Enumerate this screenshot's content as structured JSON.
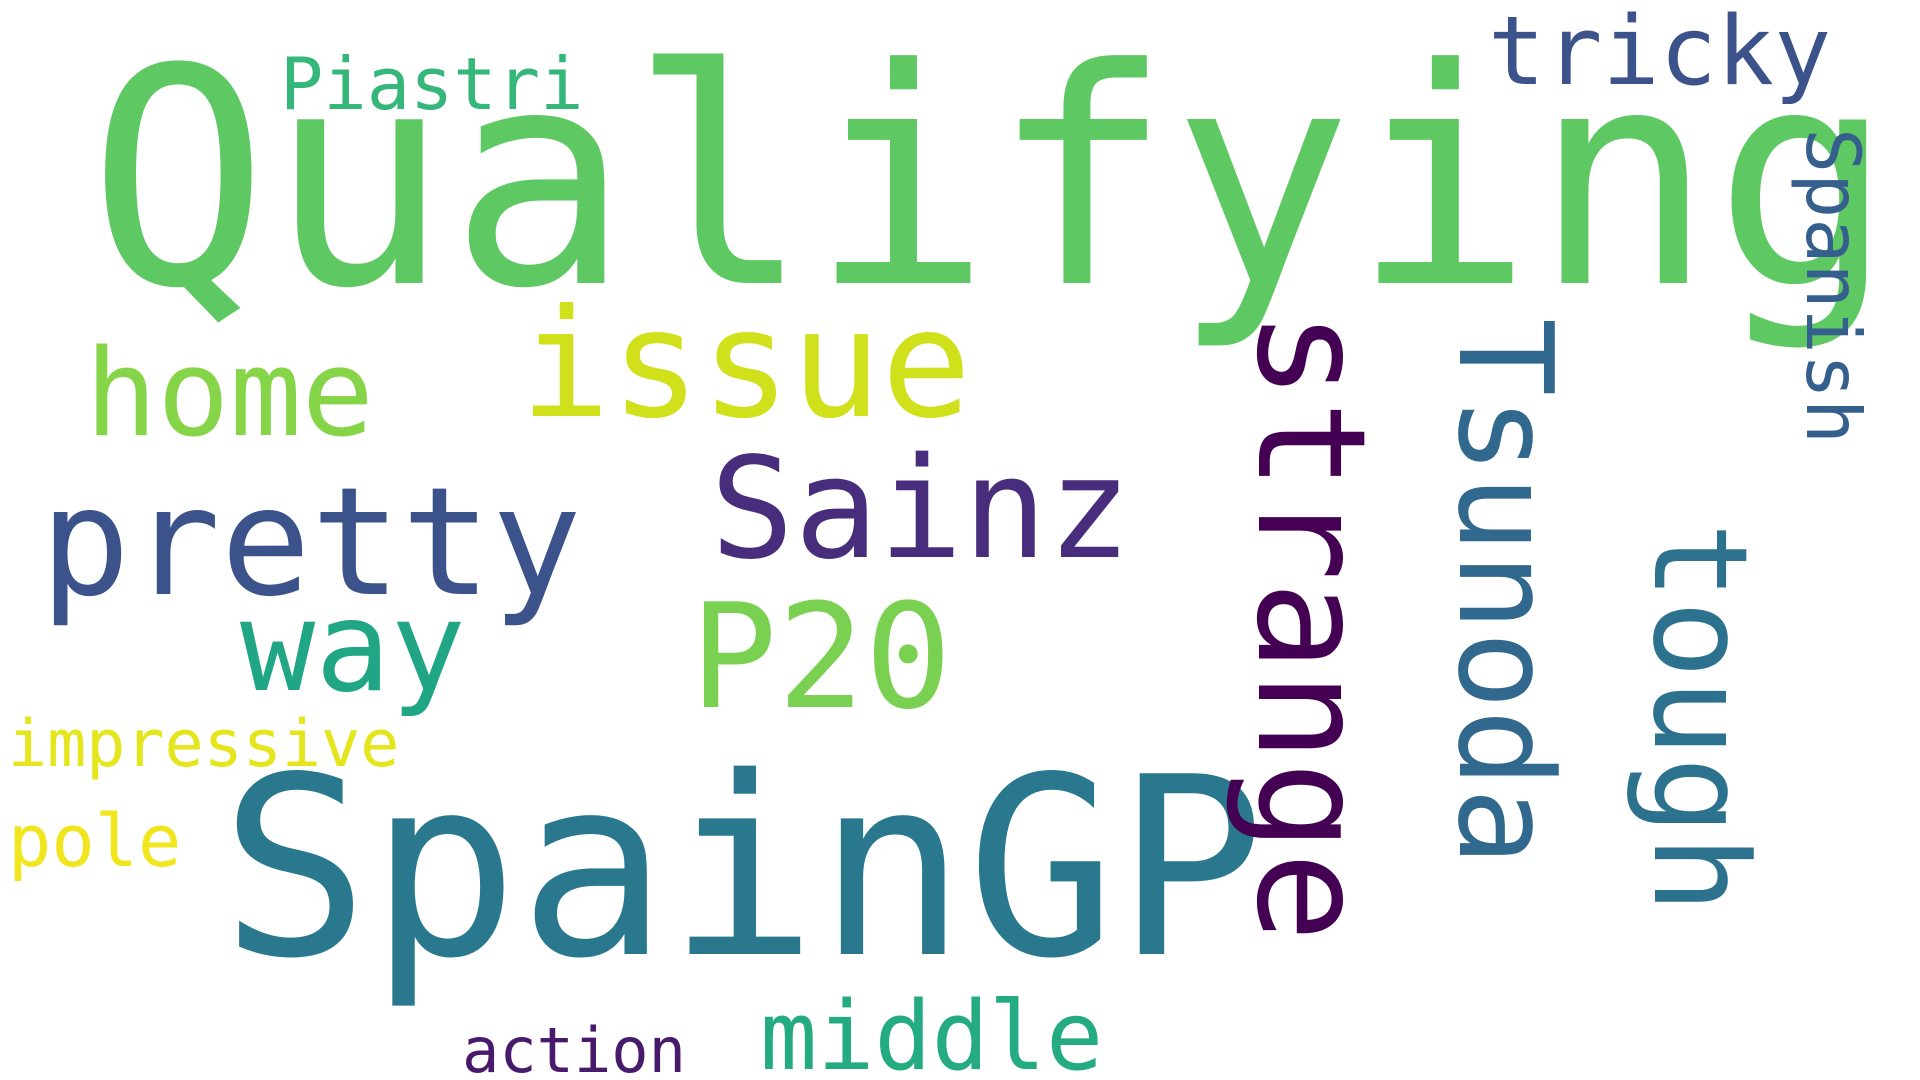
{
  "words": [
    {
      "text": "Qualifying",
      "color": "#5ec962",
      "orientation": "horizontal"
    },
    {
      "text": "SpainGP",
      "color": "#2a788e",
      "orientation": "horizontal"
    },
    {
      "text": "strange",
      "color": "#440154",
      "orientation": "vertical"
    },
    {
      "text": "Tsunoda",
      "color": "#31688e",
      "orientation": "vertical"
    },
    {
      "text": "tough",
      "color": "#2c728e",
      "orientation": "vertical"
    },
    {
      "text": "pretty",
      "color": "#3b528b",
      "orientation": "horizontal"
    },
    {
      "text": "issue",
      "color": "#d0e11c",
      "orientation": "horizontal"
    },
    {
      "text": "home",
      "color": "#86d549",
      "orientation": "horizontal"
    },
    {
      "text": "Sainz",
      "color": "#472d7b",
      "orientation": "horizontal"
    },
    {
      "text": "P20",
      "color": "#7ad151",
      "orientation": "horizontal"
    },
    {
      "text": "way",
      "color": "#21a685",
      "orientation": "horizontal"
    },
    {
      "text": "middle",
      "color": "#25ab82",
      "orientation": "horizontal"
    },
    {
      "text": "tricky",
      "color": "#3b528b",
      "orientation": "horizontal"
    },
    {
      "text": "Spanish",
      "color": "#355f8d",
      "orientation": "vertical"
    },
    {
      "text": "Piastri",
      "color": "#35b779",
      "orientation": "horizontal"
    },
    {
      "text": "impressive",
      "color": "#e4e51b",
      "orientation": "horizontal"
    },
    {
      "text": "pole",
      "color": "#f1e51d",
      "orientation": "horizontal"
    },
    {
      "text": "action",
      "color": "#481a6c",
      "orientation": "horizontal"
    }
  ]
}
